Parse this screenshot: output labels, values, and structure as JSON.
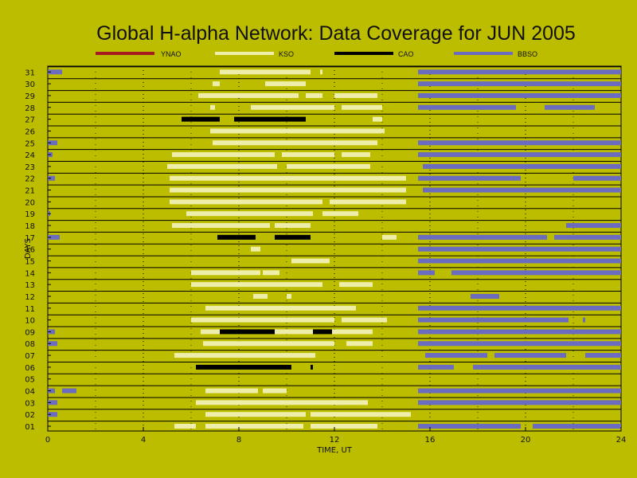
{
  "chart_data": {
    "type": "timeline",
    "title": "Global H-alpha Network: Data Coverage for JUN 2005",
    "xlabel": "TIME, UT",
    "ylabel": "DAYS",
    "xlim": [
      0,
      24
    ],
    "xticks": [
      0,
      4,
      8,
      12,
      16,
      20,
      24
    ],
    "days": [
      "01",
      "02",
      "03",
      "04",
      "05",
      "06",
      "07",
      "08",
      "09",
      "10",
      "11",
      "12",
      "13",
      "14",
      "15",
      "16",
      "17",
      "18",
      "19",
      "20",
      "21",
      "22",
      "23",
      "24",
      "25",
      "26",
      "27",
      "28",
      "29",
      "30",
      "31"
    ],
    "grid": true,
    "legend_placement": "top",
    "series": [
      {
        "name": "YNAO",
        "color": "#a51c1c",
        "segments": []
      },
      {
        "name": "KSO",
        "color": "#eeeeaa",
        "segments": [
          {
            "day": 1,
            "start": 5.3,
            "end": 6.2
          },
          {
            "day": 1,
            "start": 6.6,
            "end": 10.7
          },
          {
            "day": 1,
            "start": 11.0,
            "end": 13.8
          },
          {
            "day": 2,
            "start": 6.6,
            "end": 10.8
          },
          {
            "day": 2,
            "start": 11.0,
            "end": 15.2
          },
          {
            "day": 3,
            "start": 6.2,
            "end": 13.4
          },
          {
            "day": 4,
            "start": 6.6,
            "end": 8.8
          },
          {
            "day": 4,
            "start": 9.0,
            "end": 10.0
          },
          {
            "day": 7,
            "start": 5.3,
            "end": 11.2
          },
          {
            "day": 8,
            "start": 6.5,
            "end": 12.0
          },
          {
            "day": 8,
            "start": 12.5,
            "end": 13.6
          },
          {
            "day": 9,
            "start": 6.4,
            "end": 11.2
          },
          {
            "day": 9,
            "start": 11.5,
            "end": 13.6
          },
          {
            "day": 10,
            "start": 6.0,
            "end": 12.0
          },
          {
            "day": 10,
            "start": 12.3,
            "end": 14.2
          },
          {
            "day": 11,
            "start": 6.6,
            "end": 12.9
          },
          {
            "day": 12,
            "start": 8.6,
            "end": 9.2
          },
          {
            "day": 12,
            "start": 10.0,
            "end": 10.2
          },
          {
            "day": 13,
            "start": 6.0,
            "end": 11.5
          },
          {
            "day": 13,
            "start": 12.2,
            "end": 13.6
          },
          {
            "day": 14,
            "start": 6.0,
            "end": 8.9
          },
          {
            "day": 14,
            "start": 9.0,
            "end": 9.7
          },
          {
            "day": 15,
            "start": 10.2,
            "end": 11.8
          },
          {
            "day": 16,
            "start": 8.5,
            "end": 8.9
          },
          {
            "day": 17,
            "start": 10.5,
            "end": 11.0
          },
          {
            "day": 17,
            "start": 14.0,
            "end": 14.6
          },
          {
            "day": 18,
            "start": 5.2,
            "end": 9.3
          },
          {
            "day": 18,
            "start": 9.5,
            "end": 11.0
          },
          {
            "day": 19,
            "start": 5.8,
            "end": 11.1
          },
          {
            "day": 19,
            "start": 11.5,
            "end": 13.0
          },
          {
            "day": 20,
            "start": 5.1,
            "end": 11.5
          },
          {
            "day": 20,
            "start": 11.8,
            "end": 15.0
          },
          {
            "day": 21,
            "start": 5.1,
            "end": 15.0
          },
          {
            "day": 22,
            "start": 5.1,
            "end": 15.0
          },
          {
            "day": 23,
            "start": 5.0,
            "end": 9.6
          },
          {
            "day": 23,
            "start": 10.0,
            "end": 13.5
          },
          {
            "day": 24,
            "start": 5.2,
            "end": 9.5
          },
          {
            "day": 24,
            "start": 9.8,
            "end": 12.0
          },
          {
            "day": 24,
            "start": 12.3,
            "end": 13.5
          },
          {
            "day": 25,
            "start": 6.9,
            "end": 13.8
          },
          {
            "day": 26,
            "start": 6.8,
            "end": 14.1
          },
          {
            "day": 27,
            "start": 13.6,
            "end": 14.0
          },
          {
            "day": 28,
            "start": 6.8,
            "end": 7.0
          },
          {
            "day": 28,
            "start": 8.5,
            "end": 12.0
          },
          {
            "day": 28,
            "start": 12.3,
            "end": 14.0
          },
          {
            "day": 29,
            "start": 6.3,
            "end": 10.5
          },
          {
            "day": 29,
            "start": 10.8,
            "end": 11.5
          },
          {
            "day": 29,
            "start": 12.0,
            "end": 13.8
          },
          {
            "day": 30,
            "start": 6.9,
            "end": 7.2
          },
          {
            "day": 30,
            "start": 9.1,
            "end": 10.8
          },
          {
            "day": 31,
            "start": 7.2,
            "end": 11.0
          },
          {
            "day": 31,
            "start": 11.4,
            "end": 11.5
          }
        ]
      },
      {
        "name": "CAO",
        "color": "#000000",
        "segments": [
          {
            "day": 6,
            "start": 6.2,
            "end": 10.2
          },
          {
            "day": 6,
            "start": 11.0,
            "end": 11.1
          },
          {
            "day": 9,
            "start": 7.2,
            "end": 9.5
          },
          {
            "day": 9,
            "start": 11.1,
            "end": 11.9
          },
          {
            "day": 17,
            "start": 7.1,
            "end": 8.7
          },
          {
            "day": 17,
            "start": 9.5,
            "end": 11.0
          },
          {
            "day": 27,
            "start": 5.6,
            "end": 7.2
          },
          {
            "day": 27,
            "start": 7.8,
            "end": 10.8
          }
        ]
      },
      {
        "name": "BBSO",
        "color": "#6b6bbf",
        "segments": [
          {
            "day": 1,
            "start": 15.5,
            "end": 19.8
          },
          {
            "day": 1,
            "start": 20.3,
            "end": 24.0
          },
          {
            "day": 2,
            "start": 0.0,
            "end": 0.4
          },
          {
            "day": 3,
            "start": 0.0,
            "end": 0.4
          },
          {
            "day": 3,
            "start": 15.5,
            "end": 24.0
          },
          {
            "day": 4,
            "start": 0.0,
            "end": 0.3
          },
          {
            "day": 4,
            "start": 0.6,
            "end": 1.2
          },
          {
            "day": 4,
            "start": 15.5,
            "end": 24.0
          },
          {
            "day": 6,
            "start": 15.5,
            "end": 17.0
          },
          {
            "day": 6,
            "start": 17.8,
            "end": 24.0
          },
          {
            "day": 7,
            "start": 15.8,
            "end": 18.4
          },
          {
            "day": 7,
            "start": 18.7,
            "end": 21.7
          },
          {
            "day": 7,
            "start": 22.5,
            "end": 24.0
          },
          {
            "day": 8,
            "start": 0.0,
            "end": 0.4
          },
          {
            "day": 8,
            "start": 15.5,
            "end": 24.0
          },
          {
            "day": 9,
            "start": 0.0,
            "end": 0.3
          },
          {
            "day": 9,
            "start": 15.5,
            "end": 24.0
          },
          {
            "day": 10,
            "start": 15.5,
            "end": 21.8
          },
          {
            "day": 10,
            "start": 22.4,
            "end": 22.5
          },
          {
            "day": 11,
            "start": 15.5,
            "end": 24.0
          },
          {
            "day": 12,
            "start": 17.7,
            "end": 18.9
          },
          {
            "day": 14,
            "start": 15.5,
            "end": 16.2
          },
          {
            "day": 14,
            "start": 16.9,
            "end": 24.0
          },
          {
            "day": 15,
            "start": 15.5,
            "end": 24.0
          },
          {
            "day": 16,
            "start": 15.5,
            "end": 24.0
          },
          {
            "day": 17,
            "start": 0.0,
            "end": 0.5
          },
          {
            "day": 17,
            "start": 15.5,
            "end": 20.9
          },
          {
            "day": 17,
            "start": 21.2,
            "end": 24.0
          },
          {
            "day": 18,
            "start": 21.7,
            "end": 24.0
          },
          {
            "day": 19,
            "start": 0.0,
            "end": 0.1
          },
          {
            "day": 21,
            "start": 15.7,
            "end": 24.0
          },
          {
            "day": 22,
            "start": 0.0,
            "end": 0.3
          },
          {
            "day": 22,
            "start": 15.5,
            "end": 19.8
          },
          {
            "day": 22,
            "start": 22.0,
            "end": 24.0
          },
          {
            "day": 23,
            "start": 15.7,
            "end": 24.0
          },
          {
            "day": 24,
            "start": 0.0,
            "end": 0.2
          },
          {
            "day": 24,
            "start": 15.5,
            "end": 24.0
          },
          {
            "day": 25,
            "start": 0.0,
            "end": 0.4
          },
          {
            "day": 25,
            "start": 15.5,
            "end": 24.0
          },
          {
            "day": 28,
            "start": 15.5,
            "end": 19.6
          },
          {
            "day": 28,
            "start": 20.8,
            "end": 22.9
          },
          {
            "day": 29,
            "start": 15.5,
            "end": 24.0
          },
          {
            "day": 30,
            "start": 15.5,
            "end": 24.0
          },
          {
            "day": 31,
            "start": 0.0,
            "end": 0.6
          },
          {
            "day": 31,
            "start": 15.5,
            "end": 24.0
          }
        ]
      }
    ]
  }
}
